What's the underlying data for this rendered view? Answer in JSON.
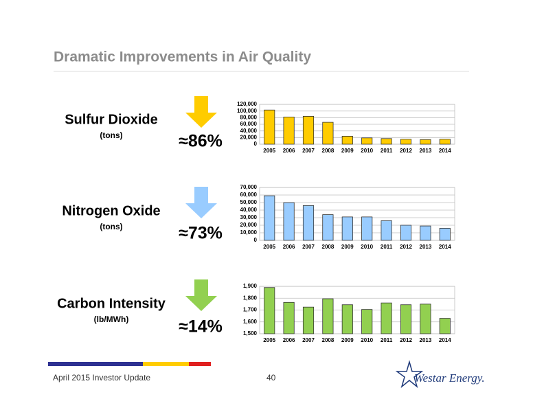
{
  "slide": {
    "title": "Dramatic Improvements in Air Quality",
    "footer": "April 2015 Investor Update",
    "page_number": "40",
    "logo": "Westar Energy."
  },
  "chart_data": [
    {
      "type": "bar",
      "label": "Sulfur Dioxide",
      "unit": "(tons)",
      "reduction": "≈86%",
      "color": "#ffcc00",
      "categories": [
        "2005",
        "2006",
        "2007",
        "2008",
        "2009",
        "2010",
        "2011",
        "2012",
        "2013",
        "2014"
      ],
      "values": [
        103000,
        82000,
        84000,
        66000,
        24000,
        19000,
        17000,
        15000,
        14000,
        15000
      ],
      "ylim": [
        0,
        120000
      ],
      "yticks": [
        0,
        {
          "value": 20000,
          "label": "20,000"
        },
        {
          "value": 40000,
          "label": "40,000"
        },
        {
          "value": 60000,
          "label": "60,000"
        },
        {
          "value": 80000,
          "label": "80,000"
        },
        {
          "value": 100000,
          "label": "100,000"
        },
        {
          "value": 120000,
          "label": "120,000"
        }
      ],
      "grid": true
    },
    {
      "type": "bar",
      "label": "Nitrogen Oxide",
      "unit": "(tons)",
      "reduction": "≈73%",
      "color": "#99ccff",
      "categories": [
        "2005",
        "2006",
        "2007",
        "2008",
        "2009",
        "2010",
        "2011",
        "2012",
        "2013",
        "2014"
      ],
      "values": [
        59000,
        50000,
        46000,
        34000,
        31000,
        31000,
        26000,
        20000,
        19000,
        16000
      ],
      "ylim": [
        0,
        70000
      ],
      "yticks": [
        0,
        {
          "value": 10000,
          "label": "10,000"
        },
        {
          "value": 20000,
          "label": "20,000"
        },
        {
          "value": 30000,
          "label": "30,000"
        },
        {
          "value": 40000,
          "label": "40,000"
        },
        {
          "value": 50000,
          "label": "50,000"
        },
        {
          "value": 60000,
          "label": "60,000"
        },
        {
          "value": 70000,
          "label": "70,000"
        }
      ],
      "grid": true
    },
    {
      "type": "bar",
      "label": "Carbon Intensity",
      "unit": "(lb/MWh)",
      "reduction": "≈14%",
      "color": "#92d050",
      "categories": [
        "2005",
        "2006",
        "2007",
        "2008",
        "2009",
        "2010",
        "2011",
        "2012",
        "2013",
        "2014"
      ],
      "values": [
        1890,
        1765,
        1725,
        1795,
        1745,
        1705,
        1760,
        1745,
        1750,
        1630
      ],
      "ylim": [
        1500,
        1900
      ],
      "yticks": [
        {
          "value": 1500,
          "label": "1,500"
        },
        {
          "value": 1600,
          "label": "1,600"
        },
        {
          "value": 1700,
          "label": "1,700"
        },
        {
          "value": 1800,
          "label": "1,800"
        },
        {
          "value": 1900,
          "label": "1,900"
        }
      ],
      "grid": true
    }
  ]
}
